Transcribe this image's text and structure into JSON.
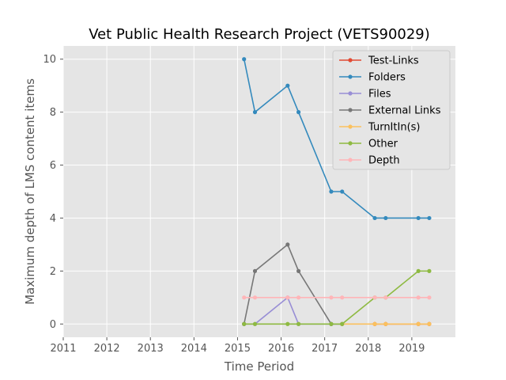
{
  "chart_data": {
    "type": "line",
    "title": "Vet Public Health Research Project (VETS90029)",
    "xlabel": "Time Period",
    "ylabel": "Maximum depth of LMS content items",
    "xlim": [
      2011.0,
      2020.0
    ],
    "ylim": [
      -0.5,
      10.5
    ],
    "xticks": [
      2011,
      2012,
      2013,
      2014,
      2015,
      2016,
      2017,
      2018,
      2019
    ],
    "yticks": [
      0,
      2,
      4,
      6,
      8,
      10
    ],
    "grid": true,
    "legend_position": "top-right",
    "x": [
      2015.15,
      2015.4,
      2016.15,
      2016.4,
      2017.15,
      2017.4,
      2018.15,
      2018.4,
      2019.15,
      2019.4
    ],
    "series": [
      {
        "name": "Test-Links",
        "color": "#E24A33",
        "values": [
          null,
          null,
          null,
          null,
          null,
          null,
          0,
          0,
          0,
          0
        ]
      },
      {
        "name": "Folders",
        "color": "#348ABD",
        "values": [
          10,
          8,
          9,
          8,
          5,
          5,
          4,
          4,
          4,
          4
        ]
      },
      {
        "name": "Files",
        "color": "#988ED5",
        "values": [
          0,
          0,
          1,
          0,
          0,
          0,
          null,
          null,
          null,
          null
        ]
      },
      {
        "name": "External Links",
        "color": "#777777",
        "values": [
          0,
          2,
          3,
          2,
          0,
          0,
          null,
          null,
          null,
          null
        ]
      },
      {
        "name": "TurnItIn(s)",
        "color": "#FBC15E",
        "values": [
          null,
          null,
          null,
          null,
          null,
          0,
          0,
          0,
          0,
          0
        ]
      },
      {
        "name": "Other",
        "color": "#8EBA42",
        "values": [
          0,
          0,
          0,
          0,
          0,
          0,
          1,
          1,
          2,
          2
        ]
      },
      {
        "name": "Depth",
        "color": "#FFB5B8",
        "values": [
          1,
          1,
          1,
          1,
          1,
          1,
          1,
          1,
          1,
          1
        ]
      }
    ]
  }
}
